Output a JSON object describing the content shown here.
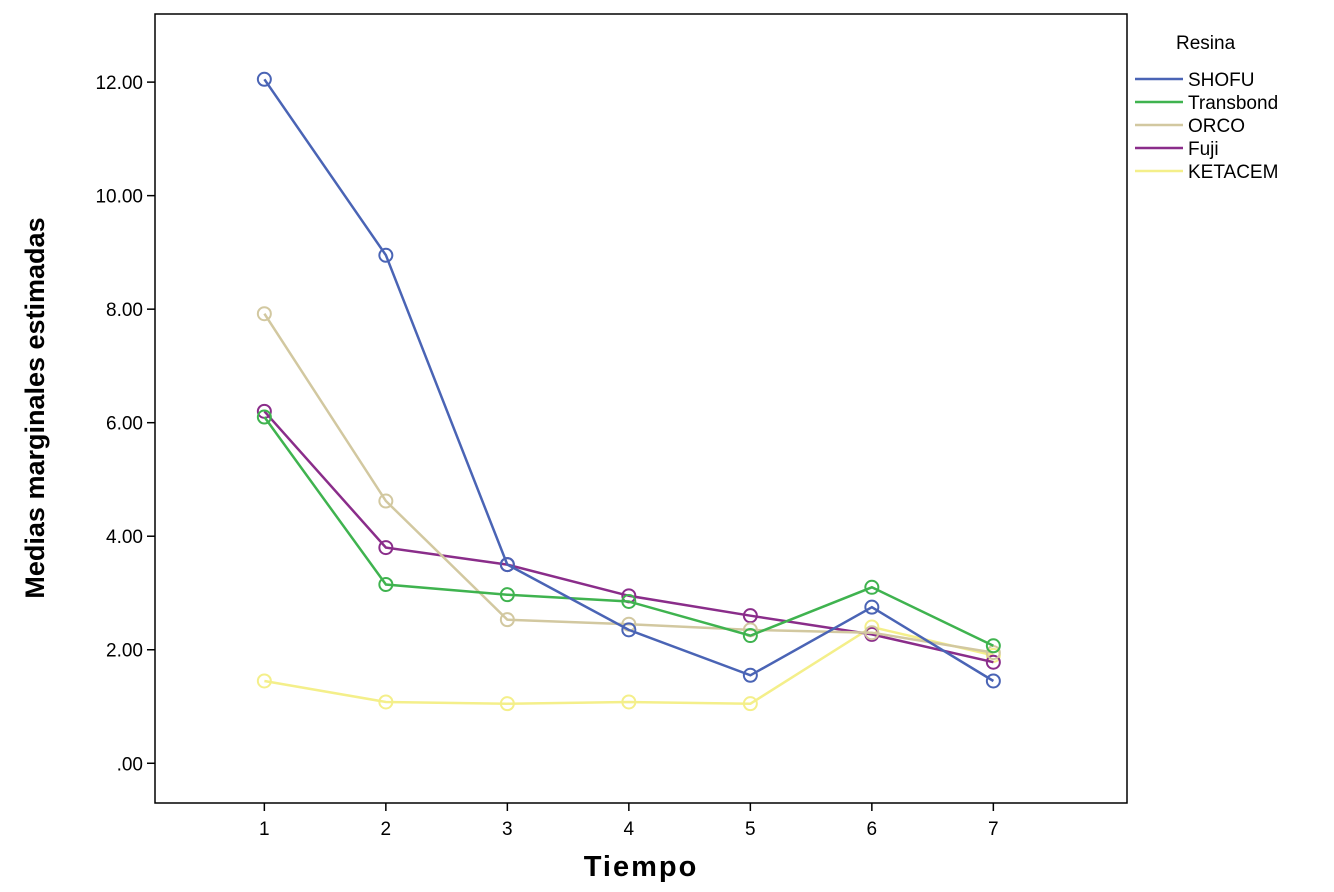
{
  "chart_data": {
    "type": "line",
    "title": "",
    "xlabel": "Tiempo",
    "ylabel": "Medias marginales estimadas",
    "x": [
      1,
      2,
      3,
      4,
      5,
      6,
      7
    ],
    "x_tick_labels": [
      "1",
      "2",
      "3",
      "4",
      "5",
      "6",
      "7"
    ],
    "y_ticks": [
      0,
      2,
      4,
      6,
      8,
      10,
      12
    ],
    "y_tick_labels": [
      ".00",
      "2.00",
      "4.00",
      "6.00",
      "8.00",
      "10.00",
      "12.00"
    ],
    "xlim": [
      0.1,
      8.1
    ],
    "ylim": [
      -0.7,
      13.2
    ],
    "grid": false,
    "legend": {
      "title": "Resina",
      "placement": "right"
    },
    "series": [
      {
        "name": "SHOFU",
        "color": "#4a64b5",
        "values": [
          12.05,
          8.95,
          3.5,
          2.35,
          1.55,
          2.75,
          1.45
        ]
      },
      {
        "name": "Transbond",
        "color": "#3fb34f",
        "values": [
          6.1,
          3.15,
          2.97,
          2.85,
          2.25,
          3.1,
          2.07
        ]
      },
      {
        "name": "ORCO",
        "color": "#d2c8a0",
        "values": [
          7.92,
          4.62,
          2.53,
          2.45,
          2.35,
          2.3,
          1.95
        ]
      },
      {
        "name": "Fuji",
        "color": "#8a2d8a",
        "values": [
          6.2,
          3.8,
          3.5,
          2.95,
          2.6,
          2.27,
          1.78
        ]
      },
      {
        "name": "KETACEM",
        "color": "#f4ef8a",
        "values": [
          1.45,
          1.08,
          1.05,
          1.08,
          1.05,
          2.4,
          1.9
        ]
      }
    ]
  }
}
